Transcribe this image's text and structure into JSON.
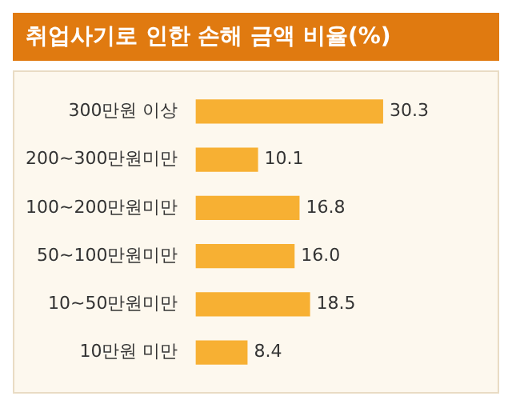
{
  "chart_data": {
    "type": "bar",
    "orientation": "horizontal",
    "title": "취업사기로 인한 손해 금액 비율(%)",
    "categories": [
      "300만원 이상",
      "200~300만원미만",
      "100~200만원미만",
      "50~100만원미만",
      "10~50만원미만",
      "10만원 미만"
    ],
    "values": [
      30.3,
      10.1,
      16.8,
      16.0,
      18.5,
      8.4
    ],
    "value_labels": [
      "30.3",
      "10.1",
      "16.8",
      "16.0",
      "18.5",
      "8.4"
    ],
    "color": "#f7b033"
  }
}
